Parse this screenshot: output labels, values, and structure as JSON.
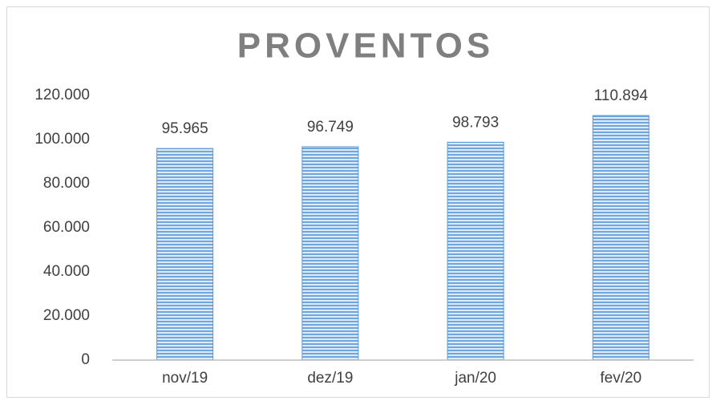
{
  "chart_data": {
    "type": "bar",
    "title": "PROVENTOS",
    "categories": [
      "nov/19",
      "dez/19",
      "jan/20",
      "fev/20"
    ],
    "values": [
      95965,
      96749,
      98793,
      110894
    ],
    "value_labels": [
      "95.965",
      "96.749",
      "98.793",
      "110.894"
    ],
    "color": "#5b9bd5",
    "ylim": [
      0,
      120000
    ],
    "yticks": [
      0,
      {
        "value": 20000,
        "label": "20.000"
      },
      {
        "value": 40000,
        "label": "40.000"
      },
      {
        "value": 60000,
        "label": "60.000"
      },
      {
        "value": 80000,
        "label": "80.000"
      },
      {
        "value": 100000,
        "label": "100.000"
      },
      {
        "value": 120000,
        "label": "120.000"
      }
    ],
    "grid": false
  }
}
